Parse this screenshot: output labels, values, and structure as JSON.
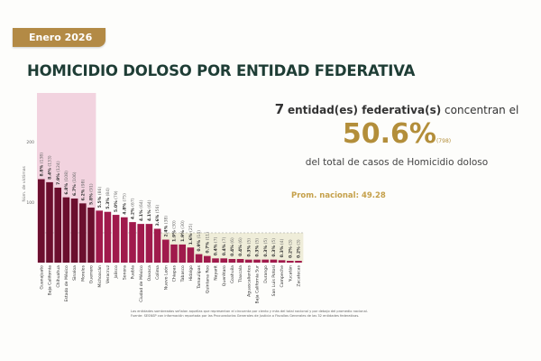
{
  "header": {
    "period": "Enero 2026",
    "title": "HOMICIDIO DOLOSO POR ENTIDAD FEDERATIVA"
  },
  "summary": {
    "count": "7",
    "line1": "entidad(es) federativa(s)",
    "line1b": "concentran el",
    "percent": "50.6%",
    "cases": "(798)",
    "line3": "del total de casos de Homicidio doloso"
  },
  "average_label": "Prom. nacional: 49.28",
  "footnote": [
    "Las entidades sombreadas señalan aquellas que representan el cincuenta por ciento y más del total nacional y por debajo del promedio nacional.",
    "Fuente: SESNSP con información reportada por las Procuradurías Generales de Justicia o Fiscalías Generales de las 32 entidades federativas."
  ],
  "colors": {
    "top": "#6b0f2e",
    "rest": "#a01a4c",
    "top_shade": "#f2d3df",
    "below_avg_shade": "#efedd9",
    "gold": "#b38e3a",
    "title": "#1e3d35"
  },
  "chart_data": {
    "type": "bar",
    "ylabel": "Núm. de víctimas",
    "yticks": [
      100,
      200
    ],
    "ylim": [
      0,
      280
    ],
    "average": 49.28,
    "top_count": 7,
    "categories": [
      "Guanajuato",
      "Baja California",
      "Chihuahua",
      "Estado de México",
      "Sinaloa",
      "Morelos",
      "Guerrero",
      "Michoacán",
      "Veracruz",
      "Jalisco",
      "Sonora",
      "Puebla",
      "Ciudad de México",
      "Oaxaca",
      "Colima",
      "Nuevo León",
      "Chiapas",
      "Tabasco",
      "Hidalgo",
      "Tamaulipas",
      "Quintana Roo",
      "Nayarit",
      "Querétaro",
      "Coahuila",
      "Tlaxcala",
      "Aguascalientes",
      "Baja California Sur",
      "Durango",
      "San Luis Potosí",
      "Campeche",
      "Yucatán",
      "Zacatecas"
    ],
    "values": [
      138,
      133,
      124,
      108,
      106,
      98,
      91,
      86,
      84,
      79,
      75,
      67,
      64,
      64,
      56,
      38,
      30,
      30,
      25,
      14,
      11,
      7,
      7,
      6,
      6,
      5,
      5,
      5,
      5,
      4,
      3,
      3
    ],
    "percents": [
      "8.8%",
      "8.4%",
      "7.9%",
      "6.8%",
      "6.7%",
      "6.2%",
      "5.8%",
      "5.5%",
      "5.3%",
      "5.0%",
      "4.8%",
      "4.2%",
      "4.1%",
      "4.1%",
      "3.6%",
      "2.4%",
      "1.9%",
      "1.9%",
      "1.6%",
      "0.9%",
      "0.7%",
      "0.4%",
      "0.4%",
      "0.4%",
      "0.4%",
      "0.3%",
      "0.3%",
      "0.3%",
      "0.3%",
      "0.3%",
      "0.2%",
      "0.2%"
    ]
  }
}
